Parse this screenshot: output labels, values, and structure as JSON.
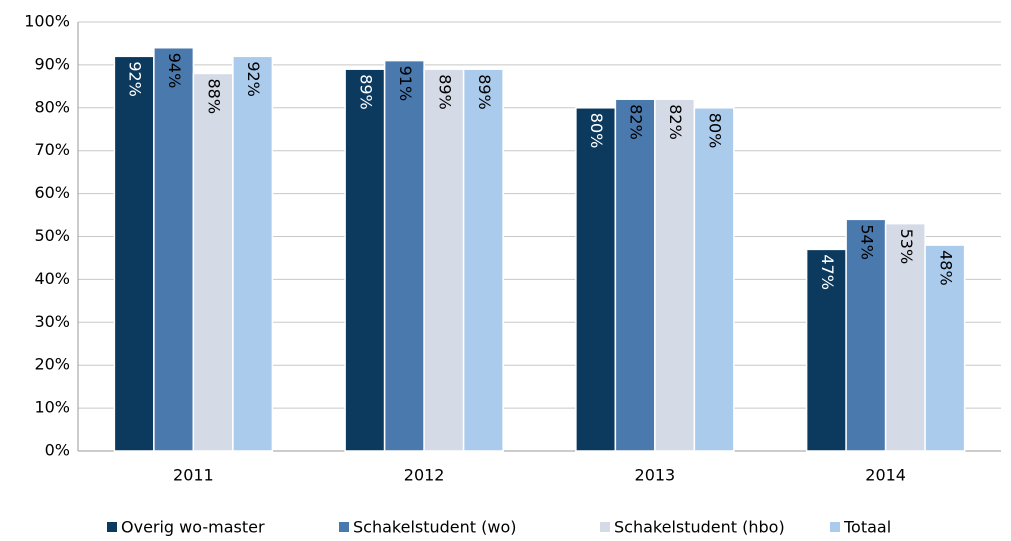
{
  "chart_data": {
    "type": "bar",
    "categories": [
      "2011",
      "2012",
      "2013",
      "2014"
    ],
    "series": [
      {
        "name": "Overig wo-master",
        "color": "#0c3a5f",
        "values": [
          92,
          89,
          80,
          47
        ],
        "value_labels": [
          "92%",
          "89%",
          "80%",
          "47%"
        ]
      },
      {
        "name": "Schakelstudent (wo)",
        "color": "#4a79ae",
        "values": [
          94,
          91,
          82,
          54
        ],
        "value_labels": [
          "94%",
          "91%",
          "82%",
          "54%"
        ]
      },
      {
        "name": "Schakelstudent (hbo)",
        "color": "#d5dae7",
        "values": [
          88,
          89,
          82,
          53
        ],
        "value_labels": [
          "88%",
          "89%",
          "82%",
          "53%"
        ]
      },
      {
        "name": "Totaal",
        "color": "#abcbec",
        "values": [
          92,
          89,
          80,
          48
        ],
        "value_labels": [
          "92%",
          "89%",
          "80%",
          "48%"
        ]
      }
    ],
    "ylim": [
      0,
      100
    ],
    "yticks": [
      {
        "value": 0,
        "label": "0%"
      },
      {
        "value": 10,
        "label": "10%"
      },
      {
        "value": 20,
        "label": "20%"
      },
      {
        "value": 30,
        "label": "30%"
      },
      {
        "value": 40,
        "label": "40%"
      },
      {
        "value": 50,
        "label": "50%"
      },
      {
        "value": 60,
        "label": "60%"
      },
      {
        "value": 70,
        "label": "70%"
      },
      {
        "value": 80,
        "label": "80%"
      },
      {
        "value": 90,
        "label": "90%"
      },
      {
        "value": 100,
        "label": "100%"
      }
    ],
    "grid": true,
    "legend": "bottom"
  }
}
